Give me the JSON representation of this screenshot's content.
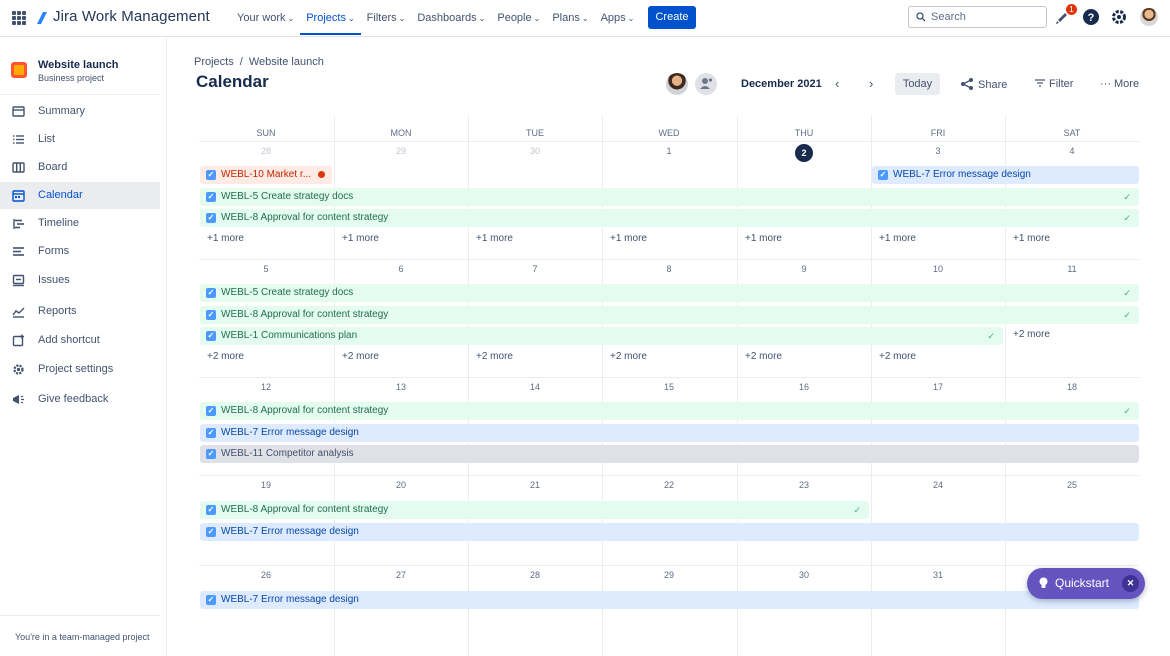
{
  "topbar": {
    "logo": "Jira Work Management",
    "nav": [
      {
        "label": "Your work",
        "active": false
      },
      {
        "label": "Projects",
        "active": true
      },
      {
        "label": "Filters",
        "active": false
      },
      {
        "label": "Dashboards",
        "active": false
      },
      {
        "label": "People",
        "active": false
      },
      {
        "label": "Plans",
        "active": false
      },
      {
        "label": "Apps",
        "active": false
      }
    ],
    "create_label": "Create",
    "search_placeholder": "Search",
    "notifications_count": "1",
    "icons": [
      "app-switcher-icon",
      "notifications-icon",
      "help-icon",
      "settings-icon"
    ]
  },
  "sidebar": {
    "project_name": "Website launch",
    "project_type": "Business project",
    "items": [
      {
        "label": "Summary",
        "icon": "summary-icon"
      },
      {
        "label": "List",
        "icon": "list-icon"
      },
      {
        "label": "Board",
        "icon": "board-icon"
      },
      {
        "label": "Calendar",
        "icon": "calendar-icon",
        "active": true
      },
      {
        "label": "Timeline",
        "icon": "timeline-icon"
      },
      {
        "label": "Forms",
        "icon": "forms-icon"
      },
      {
        "label": "Issues",
        "icon": "issues-icon"
      },
      {
        "label": "Reports",
        "icon": "reports-icon"
      },
      {
        "label": "Add shortcut",
        "icon": "add-shortcut-icon"
      },
      {
        "label": "Project settings",
        "icon": "settings-icon"
      },
      {
        "label": "Give feedback",
        "icon": "megaphone-icon"
      }
    ],
    "footer": "You're in a team-managed project"
  },
  "header": {
    "breadcrumb": [
      "Projects",
      "Website launch"
    ],
    "title": "Calendar",
    "month": "December 2021",
    "today_label": "Today",
    "share_label": "Share",
    "filter_label": "Filter",
    "more_label": "More"
  },
  "calendar": {
    "weekdays": [
      "SUN",
      "MON",
      "TUE",
      "WED",
      "THU",
      "FRI",
      "SAT"
    ],
    "weeks": [
      {
        "days": [
          "28",
          "29",
          "30",
          "1",
          "2",
          "3",
          "4"
        ],
        "muted": [
          true,
          true,
          true,
          false,
          false,
          false,
          false
        ],
        "today_index": 4,
        "events": [
          {
            "label": "WEBL-10 Market r...",
            "color": "red",
            "start": 0,
            "span": 1,
            "row": 0,
            "error": true
          },
          {
            "label": "WEBL-7 Error message design",
            "color": "blue",
            "start": 5,
            "span": 2,
            "row": 0
          },
          {
            "label": "WEBL-5 Create strategy docs",
            "color": "green",
            "start": 0,
            "span": 7,
            "row": 1,
            "done": true
          },
          {
            "label": "WEBL-8 Approval for content strategy",
            "color": "green",
            "start": 0,
            "span": 7,
            "row": 2,
            "done": true
          }
        ],
        "more": [
          "+1 more",
          "+1 more",
          "+1 more",
          "+1 more",
          "+1 more",
          "+1 more",
          "+1 more"
        ]
      },
      {
        "days": [
          "5",
          "6",
          "7",
          "8",
          "9",
          "10",
          "11"
        ],
        "muted": [
          false,
          false,
          false,
          false,
          false,
          false,
          false
        ],
        "today_index": -1,
        "events": [
          {
            "label": "WEBL-5 Create strategy docs",
            "color": "green",
            "start": 0,
            "span": 7,
            "row": 0,
            "done": true
          },
          {
            "label": "WEBL-8 Approval for content strategy",
            "color": "green",
            "start": 0,
            "span": 7,
            "row": 1,
            "done": true
          },
          {
            "label": "WEBL-1 Communications plan",
            "color": "green",
            "start": 0,
            "span": 6,
            "row": 2,
            "done": true
          }
        ],
        "more": [
          "+2 more",
          "+2 more",
          "+2 more",
          "+2 more",
          "+2 more",
          "+2 more",
          "+2 more"
        ]
      },
      {
        "days": [
          "12",
          "13",
          "14",
          "15",
          "16",
          "17",
          "18"
        ],
        "muted": [
          false,
          false,
          false,
          false,
          false,
          false,
          false
        ],
        "today_index": -1,
        "events": [
          {
            "label": "WEBL-8 Approval for content strategy",
            "color": "green",
            "start": 0,
            "span": 7,
            "row": 0,
            "done": true
          },
          {
            "label": "WEBL-7 Error message design",
            "color": "blue",
            "start": 0,
            "span": 7,
            "row": 1
          },
          {
            "label": "WEBL-11 Competitor analysis",
            "color": "gray",
            "start": 0,
            "span": 7,
            "row": 2
          }
        ],
        "more": []
      },
      {
        "days": [
          "19",
          "20",
          "21",
          "22",
          "23",
          "24",
          "25"
        ],
        "muted": [
          false,
          false,
          false,
          false,
          false,
          false,
          false
        ],
        "today_index": -1,
        "events": [
          {
            "label": "WEBL-8 Approval for content strategy",
            "color": "green",
            "start": 0,
            "span": 5,
            "row": 0,
            "done": true
          },
          {
            "label": "WEBL-7 Error message design",
            "color": "blue",
            "start": 0,
            "span": 7,
            "row": 1
          }
        ],
        "more": []
      },
      {
        "days": [
          "26",
          "27",
          "28",
          "29",
          "30",
          "31",
          ""
        ],
        "muted": [
          false,
          false,
          false,
          false,
          false,
          false,
          false
        ],
        "today_index": -1,
        "events": [
          {
            "label": "WEBL-7 Error message design",
            "color": "blue",
            "start": 0,
            "span": 7,
            "row": 0
          }
        ],
        "more": []
      }
    ]
  },
  "quickstart": {
    "label": "Quickstart"
  }
}
